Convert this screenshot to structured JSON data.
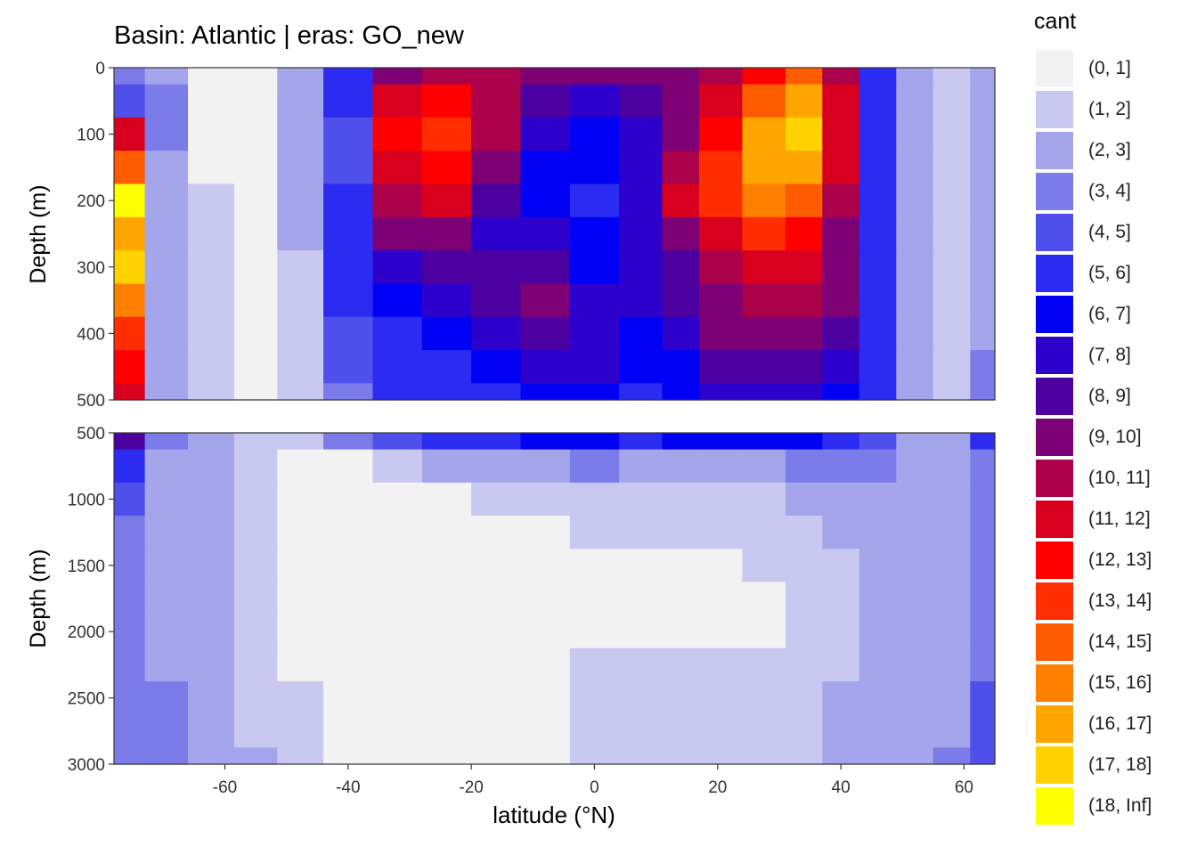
{
  "chart_data": {
    "type": "heatmap",
    "title": "Basin: Atlantic | eras: GO_new",
    "xlabel": "latitude (°N)",
    "ylabel": "Depth (m)",
    "xlim": [
      -78,
      65
    ],
    "x_ticks": [
      -60,
      -40,
      -20,
      0,
      20,
      40,
      60
    ],
    "panels": [
      {
        "name": "upper",
        "ylim": [
          0,
          500
        ],
        "y_ticks": [
          0,
          100,
          200,
          300,
          400,
          500
        ]
      },
      {
        "name": "lower",
        "ylim": [
          500,
          3000
        ],
        "y_ticks": [
          500,
          1000,
          1500,
          2000,
          2500,
          3000
        ]
      }
    ],
    "legend_title": "cant",
    "legend_position": "right",
    "bins": [
      {
        "label": "(0, 1]",
        "color": "#f2f2f2"
      },
      {
        "label": "(1, 2]",
        "color": "#c8c8f0"
      },
      {
        "label": "(2, 3]",
        "color": "#a5a5ec"
      },
      {
        "label": "(3, 4]",
        "color": "#7b7be9"
      },
      {
        "label": "(4, 5]",
        "color": "#4f4fec"
      },
      {
        "label": "(5, 6]",
        "color": "#2b2bf2"
      },
      {
        "label": "(6, 7]",
        "color": "#0000f5"
      },
      {
        "label": "(7, 8]",
        "color": "#2d00cb"
      },
      {
        "label": "(8, 9]",
        "color": "#4c00a0"
      },
      {
        "label": "(9, 10]",
        "color": "#7d0075"
      },
      {
        "label": "(10, 11]",
        "color": "#ab004a"
      },
      {
        "label": "(11, 12]",
        "color": "#d9001f"
      },
      {
        "label": "(12, 13]",
        "color": "#ff0000"
      },
      {
        "label": "(13, 14]",
        "color": "#ff2d00"
      },
      {
        "label": "(14, 15]",
        "color": "#ff5c00"
      },
      {
        "label": "(15, 16]",
        "color": "#ff8000"
      },
      {
        "label": "(16, 17]",
        "color": "#ffa500"
      },
      {
        "label": "(17, 18]",
        "color": "#ffd200"
      },
      {
        "label": "(18, Inf]",
        "color": "#ffff00"
      }
    ],
    "lat_grid": [
      -76,
      -70,
      -62,
      -55,
      -48,
      -40,
      -32,
      -24,
      -16,
      -8,
      0,
      8,
      14,
      20,
      28,
      34,
      40,
      46,
      52,
      58,
      64
    ],
    "depth_grid_upper": [
      0,
      50,
      100,
      150,
      200,
      250,
      300,
      350,
      400,
      450,
      500
    ],
    "depth_grid_lower": [
      500,
      750,
      1000,
      1250,
      1500,
      1750,
      2000,
      2250,
      2500,
      2750,
      3000
    ],
    "values_upper": [
      [
        4,
        3,
        1,
        1,
        3,
        6,
        10,
        11,
        11,
        10,
        10,
        10,
        10,
        11,
        13,
        15,
        11,
        6,
        3,
        2,
        3
      ],
      [
        5,
        4,
        1,
        1,
        3,
        6,
        12,
        13,
        11,
        9,
        8,
        9,
        10,
        12,
        15,
        17,
        12,
        6,
        3,
        2,
        3
      ],
      [
        12,
        4,
        1,
        1,
        3,
        5,
        13,
        14,
        11,
        8,
        7,
        8,
        10,
        13,
        17,
        18,
        12,
        6,
        3,
        2,
        3
      ],
      [
        15,
        3,
        1,
        1,
        3,
        5,
        12,
        13,
        10,
        7,
        7,
        8,
        11,
        14,
        17,
        17,
        12,
        6,
        3,
        2,
        3
      ],
      [
        19,
        3,
        2,
        1,
        3,
        6,
        11,
        12,
        9,
        7,
        6,
        8,
        12,
        14,
        16,
        15,
        11,
        6,
        3,
        2,
        3
      ],
      [
        17,
        3,
        2,
        1,
        3,
        6,
        10,
        10,
        8,
        8,
        7,
        8,
        10,
        12,
        14,
        13,
        10,
        6,
        3,
        2,
        3
      ],
      [
        18,
        3,
        2,
        1,
        2,
        6,
        8,
        9,
        9,
        9,
        7,
        8,
        9,
        11,
        12,
        12,
        10,
        6,
        3,
        2,
        3
      ],
      [
        16,
        3,
        2,
        1,
        2,
        6,
        7,
        8,
        9,
        10,
        8,
        8,
        9,
        10,
        11,
        11,
        10,
        6,
        3,
        2,
        3
      ],
      [
        14,
        3,
        2,
        1,
        2,
        5,
        6,
        7,
        8,
        9,
        8,
        7,
        8,
        10,
        10,
        10,
        9,
        6,
        3,
        2,
        3
      ],
      [
        13,
        3,
        2,
        1,
        2,
        5,
        6,
        6,
        7,
        8,
        8,
        7,
        7,
        9,
        9,
        9,
        8,
        6,
        3,
        2,
        4
      ],
      [
        12,
        3,
        2,
        1,
        2,
        4,
        6,
        6,
        6,
        7,
        7,
        6,
        7,
        8,
        8,
        8,
        7,
        6,
        3,
        2,
        4
      ]
    ],
    "values_lower": [
      [
        9,
        4,
        3,
        2,
        2,
        4,
        5,
        6,
        6,
        7,
        7,
        6,
        7,
        7,
        7,
        7,
        6,
        5,
        3,
        3,
        6
      ],
      [
        6,
        3,
        3,
        2,
        1,
        1,
        2,
        3,
        3,
        3,
        4,
        3,
        3,
        3,
        3,
        4,
        4,
        4,
        3,
        3,
        4
      ],
      [
        5,
        3,
        3,
        2,
        1,
        1,
        1,
        1,
        2,
        2,
        2,
        2,
        2,
        2,
        2,
        3,
        3,
        3,
        3,
        3,
        4
      ],
      [
        4,
        3,
        3,
        2,
        1,
        1,
        1,
        1,
        1,
        1,
        2,
        2,
        2,
        2,
        2,
        2,
        3,
        3,
        3,
        3,
        4
      ],
      [
        4,
        3,
        3,
        2,
        1,
        1,
        1,
        1,
        1,
        1,
        1,
        1,
        1,
        1,
        2,
        2,
        2,
        3,
        3,
        3,
        4
      ],
      [
        4,
        3,
        3,
        2,
        1,
        1,
        1,
        1,
        1,
        1,
        1,
        1,
        1,
        1,
        1,
        2,
        2,
        3,
        3,
        3,
        4
      ],
      [
        4,
        3,
        3,
        2,
        1,
        1,
        1,
        1,
        1,
        1,
        1,
        1,
        1,
        1,
        1,
        2,
        2,
        3,
        3,
        3,
        4
      ],
      [
        4,
        3,
        3,
        2,
        1,
        1,
        1,
        1,
        1,
        1,
        2,
        2,
        2,
        2,
        2,
        2,
        2,
        3,
        3,
        3,
        4
      ],
      [
        4,
        4,
        3,
        2,
        2,
        1,
        1,
        1,
        1,
        1,
        2,
        2,
        2,
        2,
        2,
        2,
        3,
        3,
        3,
        3,
        5
      ],
      [
        4,
        4,
        3,
        2,
        2,
        1,
        1,
        1,
        1,
        1,
        2,
        2,
        2,
        2,
        2,
        2,
        3,
        3,
        3,
        3,
        5
      ],
      [
        4,
        4,
        3,
        3,
        2,
        1,
        1,
        1,
        1,
        1,
        2,
        2,
        2,
        2,
        2,
        2,
        3,
        3,
        3,
        4,
        5
      ]
    ]
  }
}
